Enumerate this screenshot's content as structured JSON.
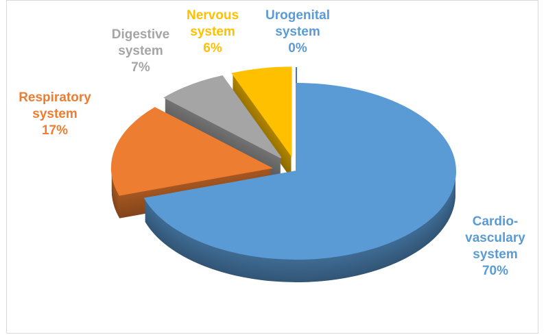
{
  "chart_data": {
    "type": "pie3d",
    "categories": [
      "Cardio-vasculary system",
      "Respiratory system",
      "Digestive system",
      "Nervous system",
      "Urogenital system"
    ],
    "values": [
      70,
      17,
      7,
      6,
      0
    ],
    "value_labels": [
      "70%",
      "17%",
      "7%",
      "6%",
      "0%"
    ],
    "colors": [
      "#5b9bd5",
      "#ed7d31",
      "#a5a5a5",
      "#ffc000",
      "#4472c4"
    ],
    "label_colors": [
      "#5b9bd5",
      "#ed7d31",
      "#a5a5a5",
      "#ffc000",
      "#5b9bd5"
    ]
  }
}
